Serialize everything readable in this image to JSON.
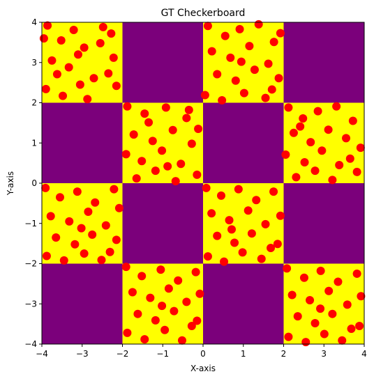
{
  "chart_data": {
    "type": "scatter",
    "title": "GT Checkerboard",
    "xlabel": "X-axis",
    "ylabel": "Y-axis",
    "xlim": [
      -4,
      4
    ],
    "ylim": [
      -4,
      4
    ],
    "x_ticks": [
      -4,
      -3,
      -2,
      -1,
      0,
      1,
      2,
      3,
      4
    ],
    "y_ticks": [
      -4,
      -3,
      -2,
      -1,
      0,
      1,
      2,
      3,
      4
    ],
    "tick_labels_x": [
      "−4",
      "−3",
      "−2",
      "−1",
      "0",
      "1",
      "2",
      "3",
      "4"
    ],
    "tick_labels_y": [
      "−4",
      "−3",
      "−2",
      "−1",
      "0",
      "1",
      "2",
      "3",
      "4"
    ],
    "grid": false,
    "legend": "none",
    "background": {
      "type": "checkerboard",
      "cell_size": 2,
      "colors": {
        "on": "#ffff00",
        "off": "#7b007b"
      },
      "on_cells": [
        {
          "x0": -4,
          "x1": -2,
          "y0": 2,
          "y1": 4
        },
        {
          "x0": 0,
          "x1": 2,
          "y0": 2,
          "y1": 4
        },
        {
          "x0": -2,
          "x1": 0,
          "y0": 0,
          "y1": 2
        },
        {
          "x0": 2,
          "x1": 4,
          "y0": 0,
          "y1": 2
        },
        {
          "x0": -4,
          "x1": -2,
          "y0": -2,
          "y1": 0
        },
        {
          "x0": 0,
          "x1": 2,
          "y0": -2,
          "y1": 0
        },
        {
          "x0": -2,
          "x1": 0,
          "y0": -4,
          "y1": -2
        },
        {
          "x0": 2,
          "x1": 4,
          "y0": -4,
          "y1": -2
        }
      ]
    },
    "series": [
      {
        "marker_color": "#ff0000",
        "points_per_cell_estimate": 140,
        "points_note_only_inside_on_cells": true,
        "points": [
          [
            -3.86,
            3.92
          ],
          [
            -3.52,
            3.55
          ],
          [
            -3.21,
            3.81
          ],
          [
            -2.95,
            3.37
          ],
          [
            -2.48,
            3.88
          ],
          [
            -2.22,
            3.12
          ],
          [
            -3.75,
            3.05
          ],
          [
            -3.33,
            2.88
          ],
          [
            -2.71,
            2.61
          ],
          [
            -2.15,
            2.42
          ],
          [
            -3.9,
            2.34
          ],
          [
            -3.48,
            2.17
          ],
          [
            -2.87,
            2.09
          ],
          [
            -2.35,
            2.73
          ],
          [
            -3.1,
            3.2
          ],
          [
            -3.62,
            2.71
          ],
          [
            -2.55,
            3.48
          ],
          [
            -3.95,
            3.6
          ],
          [
            -3.05,
            2.45
          ],
          [
            -2.28,
            3.72
          ],
          [
            0.12,
            3.91
          ],
          [
            0.55,
            3.66
          ],
          [
            0.91,
            3.83
          ],
          [
            1.38,
            3.95
          ],
          [
            1.76,
            3.51
          ],
          [
            0.22,
            3.28
          ],
          [
            0.68,
            3.12
          ],
          [
            1.15,
            3.41
          ],
          [
            1.62,
            2.97
          ],
          [
            1.92,
            3.73
          ],
          [
            0.35,
            2.71
          ],
          [
            0.81,
            2.55
          ],
          [
            1.28,
            2.82
          ],
          [
            1.71,
            2.33
          ],
          [
            0.05,
            2.19
          ],
          [
            0.47,
            2.06
          ],
          [
            1.02,
            2.24
          ],
          [
            1.55,
            2.12
          ],
          [
            1.88,
            2.61
          ],
          [
            0.95,
            3.02
          ],
          [
            -1.88,
            1.91
          ],
          [
            -1.45,
            1.73
          ],
          [
            -0.92,
            1.88
          ],
          [
            -0.41,
            1.62
          ],
          [
            -0.12,
            1.35
          ],
          [
            -1.72,
            1.21
          ],
          [
            -1.25,
            1.05
          ],
          [
            -0.75,
            1.32
          ],
          [
            -0.28,
            0.98
          ],
          [
            -1.91,
            0.72
          ],
          [
            -1.52,
            0.55
          ],
          [
            -1.02,
            0.81
          ],
          [
            -0.55,
            0.48
          ],
          [
            -0.15,
            0.21
          ],
          [
            -1.65,
            0.12
          ],
          [
            -1.18,
            0.31
          ],
          [
            -0.68,
            0.05
          ],
          [
            -1.35,
            1.51
          ],
          [
            -0.88,
            0.42
          ],
          [
            -0.35,
            1.82
          ],
          [
            2.12,
            1.88
          ],
          [
            2.48,
            1.61
          ],
          [
            2.85,
            1.79
          ],
          [
            3.31,
            1.91
          ],
          [
            3.72,
            1.55
          ],
          [
            2.25,
            1.25
          ],
          [
            2.67,
            1.02
          ],
          [
            3.11,
            1.33
          ],
          [
            3.55,
            1.12
          ],
          [
            3.91,
            0.88
          ],
          [
            2.05,
            0.71
          ],
          [
            2.52,
            0.52
          ],
          [
            2.95,
            0.81
          ],
          [
            3.38,
            0.45
          ],
          [
            3.82,
            0.28
          ],
          [
            2.31,
            0.15
          ],
          [
            2.78,
            0.31
          ],
          [
            3.21,
            0.08
          ],
          [
            3.65,
            0.61
          ],
          [
            2.41,
            1.41
          ],
          [
            -3.91,
            -0.12
          ],
          [
            -3.55,
            -0.35
          ],
          [
            -3.12,
            -0.21
          ],
          [
            -2.68,
            -0.48
          ],
          [
            -2.21,
            -0.15
          ],
          [
            -3.78,
            -0.82
          ],
          [
            -3.32,
            -0.95
          ],
          [
            -2.85,
            -0.71
          ],
          [
            -2.41,
            -1.05
          ],
          [
            -2.08,
            -0.62
          ],
          [
            -3.65,
            -1.35
          ],
          [
            -3.18,
            -1.52
          ],
          [
            -2.75,
            -1.28
          ],
          [
            -2.31,
            -1.71
          ],
          [
            -3.88,
            -1.81
          ],
          [
            -3.45,
            -1.92
          ],
          [
            -2.95,
            -1.75
          ],
          [
            -2.52,
            -1.91
          ],
          [
            -2.15,
            -1.41
          ],
          [
            -3.02,
            -1.12
          ],
          [
            0.08,
            -0.12
          ],
          [
            0.45,
            -0.31
          ],
          [
            0.88,
            -0.15
          ],
          [
            1.32,
            -0.42
          ],
          [
            1.75,
            -0.21
          ],
          [
            0.21,
            -0.75
          ],
          [
            0.65,
            -0.92
          ],
          [
            1.12,
            -0.68
          ],
          [
            1.55,
            -1.02
          ],
          [
            1.92,
            -0.81
          ],
          [
            0.35,
            -1.31
          ],
          [
            0.78,
            -1.48
          ],
          [
            1.21,
            -1.25
          ],
          [
            1.68,
            -1.61
          ],
          [
            0.12,
            -1.82
          ],
          [
            0.52,
            -1.95
          ],
          [
            0.98,
            -1.72
          ],
          [
            1.45,
            -1.88
          ],
          [
            1.85,
            -1.51
          ],
          [
            0.71,
            -1.15
          ],
          [
            -1.91,
            -2.08
          ],
          [
            -1.52,
            -2.31
          ],
          [
            -1.05,
            -2.15
          ],
          [
            -0.62,
            -2.42
          ],
          [
            -0.18,
            -2.21
          ],
          [
            -1.75,
            -2.71
          ],
          [
            -1.31,
            -2.85
          ],
          [
            -0.85,
            -2.62
          ],
          [
            -0.41,
            -2.95
          ],
          [
            -0.08,
            -2.75
          ],
          [
            -1.62,
            -3.25
          ],
          [
            -1.18,
            -3.41
          ],
          [
            -0.72,
            -3.18
          ],
          [
            -0.28,
            -3.55
          ],
          [
            -1.88,
            -3.72
          ],
          [
            -1.45,
            -3.88
          ],
          [
            -0.95,
            -3.65
          ],
          [
            -0.52,
            -3.91
          ],
          [
            -0.15,
            -3.42
          ],
          [
            -1.02,
            -3.05
          ],
          [
            2.08,
            -2.12
          ],
          [
            2.51,
            -2.35
          ],
          [
            2.92,
            -2.18
          ],
          [
            3.35,
            -2.45
          ],
          [
            3.82,
            -2.25
          ],
          [
            2.21,
            -2.78
          ],
          [
            2.65,
            -2.91
          ],
          [
            3.12,
            -2.68
          ],
          [
            3.58,
            -3.02
          ],
          [
            3.92,
            -2.81
          ],
          [
            2.35,
            -3.31
          ],
          [
            2.78,
            -3.48
          ],
          [
            3.21,
            -3.25
          ],
          [
            3.68,
            -3.62
          ],
          [
            2.12,
            -3.82
          ],
          [
            2.55,
            -3.95
          ],
          [
            3.01,
            -3.75
          ],
          [
            3.45,
            -3.91
          ],
          [
            3.88,
            -3.55
          ],
          [
            2.91,
            -3.12
          ]
        ]
      }
    ]
  }
}
